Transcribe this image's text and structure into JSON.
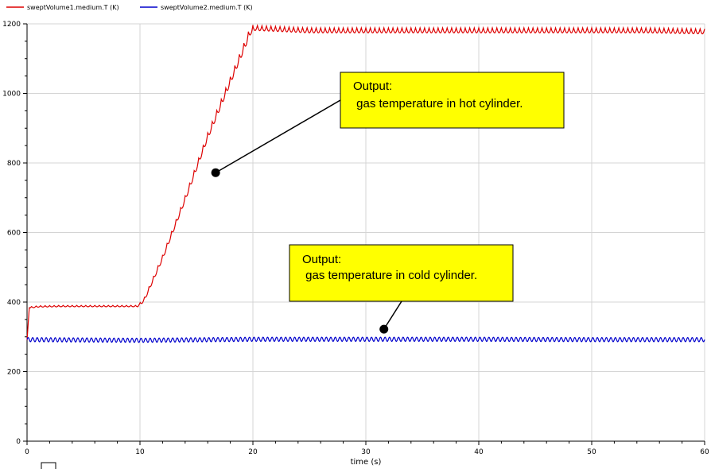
{
  "chart_data": {
    "type": "line",
    "xlabel": "time (s)",
    "ylabel": "",
    "xlim": [
      0,
      60
    ],
    "ylim": [
      0,
      1200
    ],
    "x_ticks": [
      0,
      10,
      20,
      30,
      40,
      50,
      60
    ],
    "y_ticks": [
      0,
      200,
      400,
      600,
      800,
      1000,
      1200
    ],
    "grid": true,
    "legend_position": "top-left",
    "series": [
      {
        "name": "sweptVolume1.medium.T (K)",
        "color": "#dd0000",
        "oscillation_period_s": 0.4,
        "points": [
          [
            0,
            290
          ],
          [
            0.2,
            385
          ],
          [
            1,
            388
          ],
          [
            3,
            389
          ],
          [
            5,
            389
          ],
          [
            7,
            389
          ],
          [
            9,
            389
          ],
          [
            9.8,
            389
          ],
          [
            10.4,
            410
          ],
          [
            11,
            455
          ],
          [
            12,
            530
          ],
          [
            13,
            615
          ],
          [
            14,
            700
          ],
          [
            15,
            790
          ],
          [
            16,
            880
          ],
          [
            17,
            960
          ],
          [
            18,
            1040
          ],
          [
            19,
            1120
          ],
          [
            19.8,
            1185
          ],
          [
            20.2,
            1190
          ],
          [
            25,
            1183
          ],
          [
            30,
            1183
          ],
          [
            35,
            1183
          ],
          [
            40,
            1183
          ],
          [
            45,
            1183
          ],
          [
            50,
            1183
          ],
          [
            55,
            1183
          ],
          [
            60,
            1180
          ]
        ]
      },
      {
        "name": "sweptVolume2.medium.T (K)",
        "color": "#0000cc",
        "oscillation_period_s": 0.4,
        "points": [
          [
            0,
            292
          ],
          [
            10,
            290
          ],
          [
            20,
            293
          ],
          [
            30,
            293
          ],
          [
            40,
            293
          ],
          [
            50,
            292
          ],
          [
            60,
            292
          ]
        ]
      }
    ],
    "annotations": [
      {
        "id": "hot",
        "line1": "Output:",
        "line2": " gas temperature in hot cylinder.",
        "marker": [
          16.7,
          772
        ],
        "box_color": "#ffff00"
      },
      {
        "id": "cold",
        "line1": "Output:",
        "line2": " gas temperature in cold cylinder.",
        "marker": [
          31.6,
          322
        ],
        "box_color": "#ffff00"
      }
    ]
  }
}
